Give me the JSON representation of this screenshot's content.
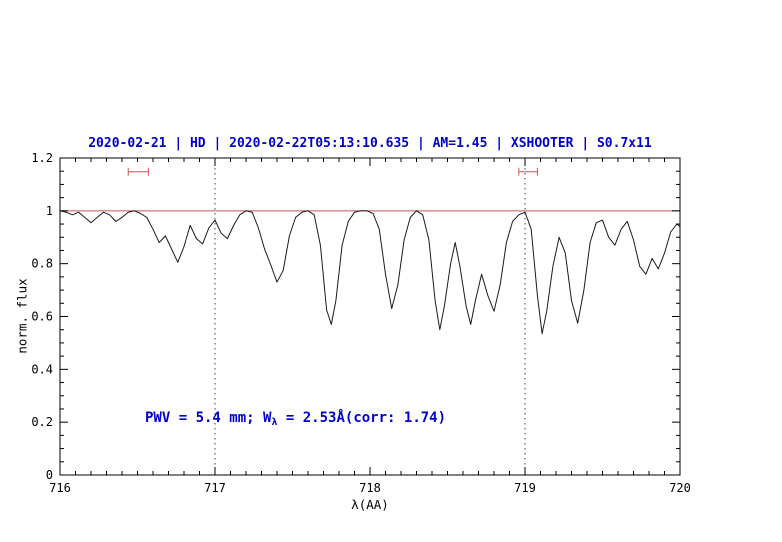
{
  "title": {
    "text": "2020-02-21 | HD | 2020-02-22T05:13:10.635 | AM=1.45 | XSHOOTER | S0.7x11",
    "color": "#0000cc"
  },
  "annotation": {
    "prefix": "PWV = 5.4 mm; W",
    "sub": "λ",
    "suffix": " = 2.53Å(corr: 1.74)",
    "color": "#0000cc"
  },
  "chart_data": {
    "type": "line",
    "title": "2020-02-21 | HD | 2020-02-22T05:13:10.635 | AM=1.45 | XSHOOTER | S0.7x11",
    "xlabel": "λ(AA)",
    "ylabel": "norm. flux",
    "xlim": [
      716,
      720
    ],
    "ylim": [
      0,
      1.2
    ],
    "x_ticks": [
      716,
      717,
      718,
      719,
      720
    ],
    "x_tick_labels": [
      "716",
      "717",
      "718",
      "719",
      "720"
    ],
    "y_ticks": [
      0,
      0.2,
      0.4,
      0.6,
      0.8,
      1,
      1.2
    ],
    "y_tick_labels": [
      "0",
      "0.2",
      "0.4",
      "0.6",
      "0.8",
      "1",
      "1.2"
    ],
    "x_minor_step": 0.1,
    "y_minor_step": 0.05,
    "grid": false,
    "legend": false,
    "frame_color": "#000000",
    "vlines": [
      {
        "x": 717,
        "style": "dotted",
        "color": "#3b3b6b"
      },
      {
        "x": 719,
        "style": "dotted",
        "color": "#3b3b6b"
      }
    ],
    "hline": {
      "y": 1.0,
      "color": "#cc5555"
    },
    "range_markers": [
      {
        "x1": 716.44,
        "x2": 716.57,
        "y": 1.148,
        "color": "#cc5555"
      },
      {
        "x1": 718.96,
        "x2": 719.08,
        "y": 1.148,
        "color": "#cc5555"
      }
    ],
    "series": [
      {
        "name": "telluric-spectrum",
        "color": "#1a1a1a",
        "points": [
          [
            716.0,
            1.0
          ],
          [
            716.04,
            0.995
          ],
          [
            716.08,
            0.985
          ],
          [
            716.12,
            0.995
          ],
          [
            716.16,
            0.975
          ],
          [
            716.2,
            0.955
          ],
          [
            716.24,
            0.975
          ],
          [
            716.28,
            0.995
          ],
          [
            716.32,
            0.985
          ],
          [
            716.36,
            0.96
          ],
          [
            716.4,
            0.975
          ],
          [
            716.44,
            0.995
          ],
          [
            716.48,
            1.0
          ],
          [
            716.52,
            0.99
          ],
          [
            716.56,
            0.975
          ],
          [
            716.6,
            0.93
          ],
          [
            716.64,
            0.88
          ],
          [
            716.68,
            0.905
          ],
          [
            716.72,
            0.855
          ],
          [
            716.76,
            0.805
          ],
          [
            716.8,
            0.865
          ],
          [
            716.84,
            0.945
          ],
          [
            716.88,
            0.895
          ],
          [
            716.92,
            0.875
          ],
          [
            716.96,
            0.935
          ],
          [
            717.0,
            0.965
          ],
          [
            717.04,
            0.915
          ],
          [
            717.08,
            0.895
          ],
          [
            717.12,
            0.945
          ],
          [
            717.16,
            0.985
          ],
          [
            717.2,
            1.0
          ],
          [
            717.24,
            0.995
          ],
          [
            717.28,
            0.935
          ],
          [
            717.32,
            0.855
          ],
          [
            717.36,
            0.795
          ],
          [
            717.4,
            0.73
          ],
          [
            717.44,
            0.775
          ],
          [
            717.48,
            0.905
          ],
          [
            717.52,
            0.975
          ],
          [
            717.56,
            0.995
          ],
          [
            717.6,
            1.0
          ],
          [
            717.64,
            0.985
          ],
          [
            717.68,
            0.87
          ],
          [
            717.72,
            0.625
          ],
          [
            717.75,
            0.57
          ],
          [
            717.78,
            0.66
          ],
          [
            717.82,
            0.87
          ],
          [
            717.86,
            0.96
          ],
          [
            717.9,
            0.995
          ],
          [
            717.94,
            1.0
          ],
          [
            717.98,
            1.0
          ],
          [
            718.02,
            0.99
          ],
          [
            718.06,
            0.93
          ],
          [
            718.1,
            0.76
          ],
          [
            718.14,
            0.63
          ],
          [
            718.18,
            0.72
          ],
          [
            718.22,
            0.89
          ],
          [
            718.26,
            0.975
          ],
          [
            718.3,
            1.0
          ],
          [
            718.34,
            0.985
          ],
          [
            718.38,
            0.89
          ],
          [
            718.42,
            0.66
          ],
          [
            718.45,
            0.55
          ],
          [
            718.48,
            0.64
          ],
          [
            718.52,
            0.8
          ],
          [
            718.55,
            0.88
          ],
          [
            718.58,
            0.79
          ],
          [
            718.62,
            0.64
          ],
          [
            718.65,
            0.57
          ],
          [
            718.68,
            0.66
          ],
          [
            718.72,
            0.76
          ],
          [
            718.76,
            0.68
          ],
          [
            718.8,
            0.62
          ],
          [
            718.84,
            0.72
          ],
          [
            718.88,
            0.88
          ],
          [
            718.92,
            0.96
          ],
          [
            718.96,
            0.985
          ],
          [
            719.0,
            0.995
          ],
          [
            719.04,
            0.93
          ],
          [
            719.08,
            0.68
          ],
          [
            719.11,
            0.535
          ],
          [
            719.14,
            0.62
          ],
          [
            719.18,
            0.79
          ],
          [
            719.22,
            0.9
          ],
          [
            719.26,
            0.84
          ],
          [
            719.3,
            0.66
          ],
          [
            719.34,
            0.575
          ],
          [
            719.38,
            0.7
          ],
          [
            719.42,
            0.88
          ],
          [
            719.46,
            0.955
          ],
          [
            719.5,
            0.965
          ],
          [
            719.54,
            0.9
          ],
          [
            719.58,
            0.87
          ],
          [
            719.62,
            0.93
          ],
          [
            719.66,
            0.96
          ],
          [
            719.7,
            0.89
          ],
          [
            719.74,
            0.79
          ],
          [
            719.78,
            0.76
          ],
          [
            719.82,
            0.82
          ],
          [
            719.86,
            0.78
          ],
          [
            719.9,
            0.84
          ],
          [
            719.94,
            0.92
          ],
          [
            719.98,
            0.95
          ],
          [
            720.0,
            0.94
          ]
        ]
      }
    ]
  }
}
